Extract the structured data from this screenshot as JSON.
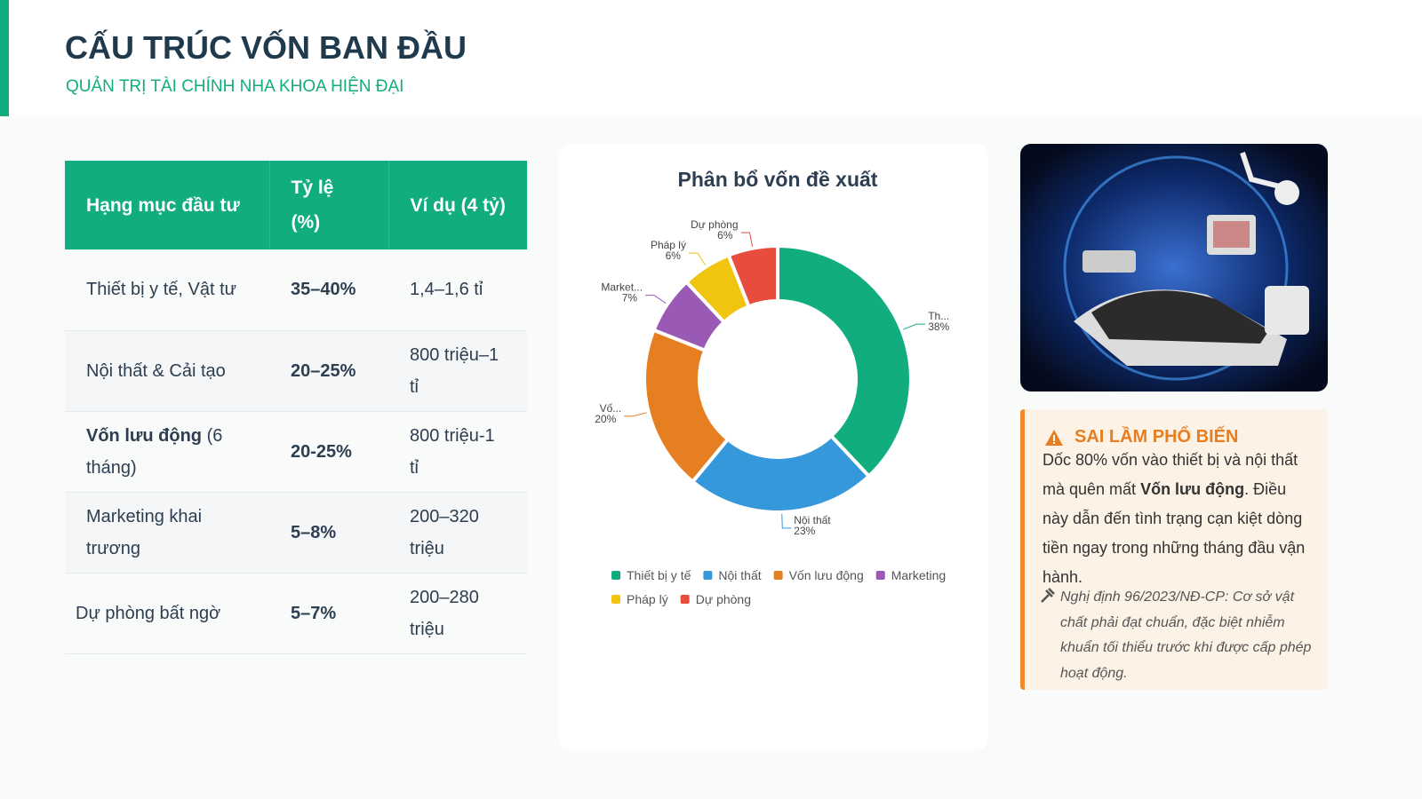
{
  "header": {
    "title": "CẤU TRÚC VỐN BAN ĐẦU",
    "subtitle": "QUẢN TRỊ TÀI CHÍNH NHA KHOA HIỆN ĐẠI"
  },
  "table": {
    "columns": [
      "Hạng mục đầu tư",
      "Tỷ lệ (%)",
      "Ví dụ (4 tỷ)"
    ],
    "rows": [
      [
        "Thiết bị y tế, Vật tư",
        "35–40%",
        "1,4–1,6 tỉ"
      ],
      [
        "Nội thất & Cải tạo",
        "20–25%",
        "800 triệu–1 tỉ"
      ],
      [
        {
          "bold": "Vốn lưu động",
          "text": "(6 tháng)"
        },
        "20-25%",
        "800 triệu-1 tỉ"
      ],
      [
        "Marketing khai trương",
        "5–8%",
        "200–320 triệu"
      ],
      [
        "Dự phòng bất ngờ",
        "5–7%",
        "200–280 triệu"
      ]
    ]
  },
  "chart_data": {
    "type": "donut",
    "title": "Phân bổ vốn đề xuất",
    "categories": [
      "Thiết bị y tế",
      "Nội thất",
      "Vốn lưu động",
      "Marketing",
      "Pháp lý",
      "Dự phòng"
    ],
    "labels": [
      "Th...",
      "Nội thất",
      "Vố...",
      "Market...",
      "Pháp lý",
      "Dự phòng"
    ],
    "values": [
      38,
      23,
      20,
      7,
      6,
      6
    ],
    "value_labels": [
      "38%",
      "23%",
      "20%",
      "7%",
      "6%",
      "6%"
    ],
    "colors": [
      "#12ad7f",
      "#3498db",
      "#e67e22",
      "#9b59b6",
      "#f1c40f",
      "#e74c3c"
    ],
    "legend": "bottom"
  },
  "callout": {
    "title": "SAI LẦM PHỔ BIẾN",
    "body": [
      "Dốc 80% vốn vào thiết bị và nội thất mà quên mất ",
      "Vốn lưu động",
      ". Điều này dẫn đến tình trạng cạn kiệt dòng tiền ngay trong những tháng đầu vận hành."
    ],
    "note": "Nghị định 96/2023/NĐ-CP: Cơ sở vật chất phải đạt chuẩn, đặc biệt nhiễm khuẩn tối thiểu trước khi được cấp phép hoạt động."
  }
}
